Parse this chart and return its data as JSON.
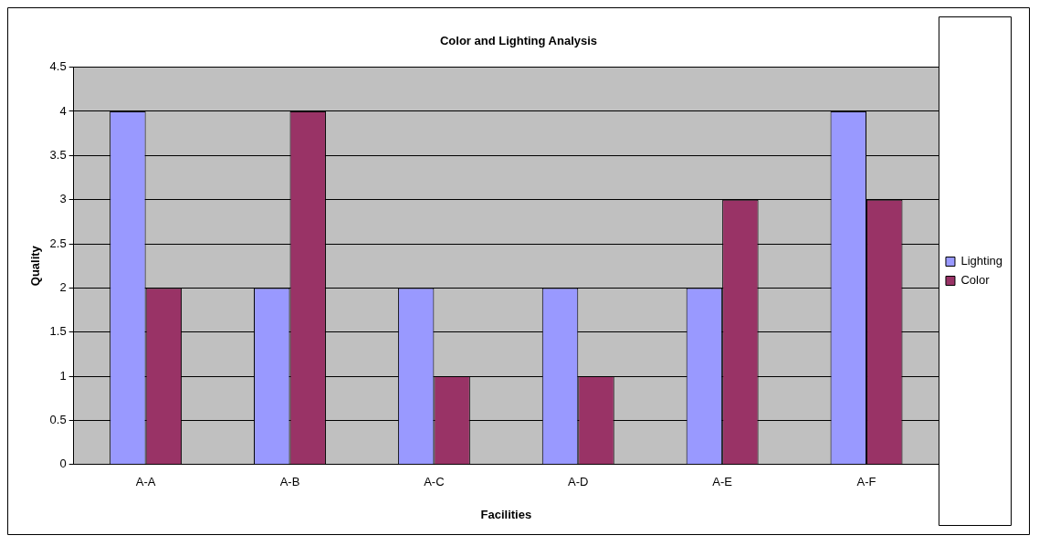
{
  "chart_data": {
    "type": "bar",
    "title": "Color and Lighting Analysis",
    "xlabel": "Facilities",
    "ylabel": "Quality",
    "categories": [
      "A-A",
      "A-B",
      "A-C",
      "A-D",
      "A-E",
      "A-F"
    ],
    "series": [
      {
        "name": "Lighting",
        "color": "#9999ff",
        "values": [
          4,
          2,
          2,
          2,
          2,
          4
        ]
      },
      {
        "name": "Color",
        "color": "#993366",
        "values": [
          2,
          4,
          1,
          1,
          3,
          3
        ]
      }
    ],
    "ylim": [
      0,
      4.5
    ],
    "yticks": [
      0,
      0.5,
      1,
      1.5,
      2,
      2.5,
      3,
      3.5,
      4,
      4.5
    ],
    "grid": "y",
    "legend": "right"
  }
}
